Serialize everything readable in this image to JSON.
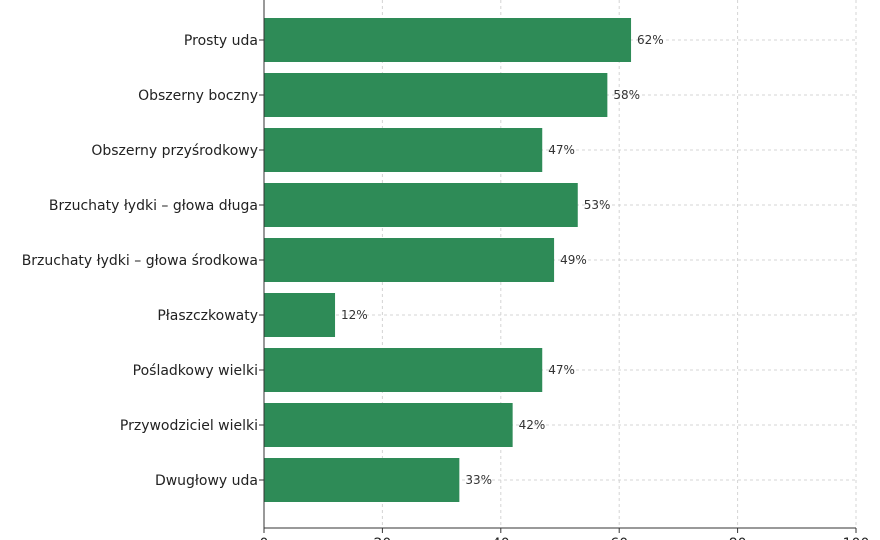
{
  "chart_data": {
    "type": "bar",
    "orientation": "horizontal",
    "categories": [
      "Prosty uda",
      "Obszerny boczny",
      "Obszerny przyśrodkowy",
      "Brzuchaty łydki – głowa długa",
      "Brzuchaty łydki – głowa środkowa",
      "Płaszczkowaty",
      "Pośladkowy wielki",
      "Przywodziciel wielki",
      "Dwugłowy uda"
    ],
    "values": [
      62,
      58,
      47,
      53,
      49,
      12,
      47,
      42,
      33
    ],
    "value_labels": [
      "62%",
      "58%",
      "47%",
      "53%",
      "49%",
      "12%",
      "47%",
      "42%",
      "33%"
    ],
    "x_ticks": [
      "0",
      "20",
      "40",
      "60",
      "80",
      "100"
    ],
    "xlim": [
      0,
      100
    ],
    "grid": true,
    "bar_color": "#2e8b57",
    "title": "",
    "xlabel": "",
    "ylabel": ""
  }
}
